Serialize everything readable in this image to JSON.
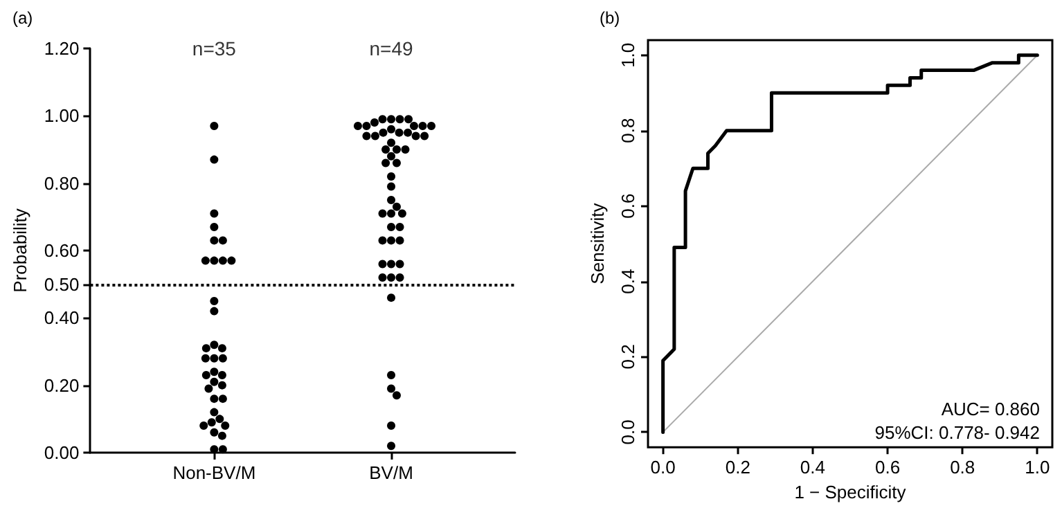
{
  "chart_data": [
    {
      "type": "scatter",
      "title": "(a)",
      "ylabel": "Probability",
      "categories": [
        "Non-BV/M",
        "BV/M"
      ],
      "marker": "circle",
      "series": [
        {
          "color": "#000000",
          "x": [
            "Non-BV/M",
            "Non-BV/M",
            "Non-BV/M",
            "Non-BV/M",
            "Non-BV/M",
            "Non-BV/M",
            "Non-BV/M",
            "Non-BV/M",
            "Non-BV/M",
            "Non-BV/M",
            "Non-BV/M",
            "Non-BV/M",
            "Non-BV/M",
            "Non-BV/M",
            "Non-BV/M",
            "Non-BV/M",
            "Non-BV/M",
            "Non-BV/M",
            "Non-BV/M",
            "Non-BV/M",
            "Non-BV/M",
            "Non-BV/M",
            "Non-BV/M",
            "Non-BV/M",
            "Non-BV/M",
            "Non-BV/M",
            "Non-BV/M",
            "Non-BV/M",
            "Non-BV/M",
            "Non-BV/M",
            "Non-BV/M",
            "Non-BV/M",
            "Non-BV/M",
            "Non-BV/M",
            "Non-BV/M"
          ],
          "values": [
            0.97,
            0.87,
            0.71,
            0.67,
            0.63,
            0.63,
            0.57,
            0.57,
            0.57,
            0.57,
            0.45,
            0.42,
            0.32,
            0.31,
            0.31,
            0.28,
            0.28,
            0.28,
            0.23,
            0.24,
            0.23,
            0.2,
            0.19,
            0.21,
            0.16,
            0.16,
            0.12,
            0.1,
            0.09,
            0.08,
            0.08,
            0.06,
            0.05,
            0.01,
            0.01
          ]
        },
        {
          "color": "#000000",
          "x": [
            "BV/M",
            "BV/M",
            "BV/M",
            "BV/M",
            "BV/M",
            "BV/M",
            "BV/M",
            "BV/M",
            "BV/M",
            "BV/M",
            "BV/M",
            "BV/M",
            "BV/M",
            "BV/M",
            "BV/M",
            "BV/M",
            "BV/M",
            "BV/M",
            "BV/M",
            "BV/M",
            "BV/M",
            "BV/M",
            "BV/M",
            "BV/M",
            "BV/M",
            "BV/M",
            "BV/M",
            "BV/M",
            "BV/M",
            "BV/M",
            "BV/M",
            "BV/M",
            "BV/M",
            "BV/M",
            "BV/M",
            "BV/M",
            "BV/M",
            "BV/M",
            "BV/M",
            "BV/M",
            "BV/M",
            "BV/M",
            "BV/M",
            "BV/M",
            "BV/M",
            "BV/M",
            "BV/M",
            "BV/M",
            "BV/M"
          ],
          "values": [
            0.96,
            0.95,
            0.97,
            0.98,
            0.97,
            0.99,
            0.99,
            0.99,
            0.99,
            0.95,
            0.97,
            0.94,
            0.94,
            0.94,
            0.95,
            0.97,
            0.94,
            0.97,
            0.9,
            0.9,
            0.9,
            0.92,
            0.88,
            0.86,
            0.86,
            0.82,
            0.79,
            0.75,
            0.73,
            0.71,
            0.71,
            0.71,
            0.67,
            0.67,
            0.63,
            0.63,
            0.63,
            0.56,
            0.56,
            0.56,
            0.52,
            0.52,
            0.52,
            0.46,
            0.23,
            0.19,
            0.17,
            0.08,
            0.02
          ]
        }
      ],
      "ylim": [
        0,
        1.2
      ],
      "yticks": [
        {
          "value": 0,
          "label": "0.00"
        },
        {
          "value": 0.2,
          "label": "0.20"
        },
        {
          "value": 0.4,
          "label": "0.40"
        },
        {
          "value": 0.5,
          "label": "0.50"
        },
        {
          "value": 0.6,
          "label": "0.60"
        },
        {
          "value": 0.8,
          "label": "0.80"
        },
        {
          "value": 1,
          "label": "1.00"
        },
        {
          "value": 1.2,
          "label": "1.20"
        }
      ],
      "ref_lines": [
        {
          "axis": "y",
          "value": 0.5,
          "color": "#000000",
          "line_style": "dotted"
        }
      ],
      "annotations": [
        "n=35",
        "n=49"
      ]
    },
    {
      "type": "line",
      "title": "(b)",
      "xlabel": "1 − Specificity",
      "ylabel": "Sensitivity",
      "series": [
        {
          "color": "#000000",
          "x": [
            0,
            0,
            0.03,
            0.03,
            0.06,
            0.06,
            0.08,
            0.12,
            0.12,
            0.14,
            0.17,
            0.29,
            0.29,
            0.6,
            0.6,
            0.66,
            0.66,
            0.69,
            0.69,
            0.83,
            0.88,
            0.95,
            0.95,
            1
          ],
          "values": [
            0,
            0.19,
            0.22,
            0.49,
            0.49,
            0.64,
            0.7,
            0.7,
            0.74,
            0.76,
            0.8,
            0.8,
            0.9,
            0.9,
            0.92,
            0.92,
            0.94,
            0.94,
            0.96,
            0.96,
            0.98,
            0.98,
            1,
            1
          ]
        },
        {
          "color": "#aaaaaa",
          "x": [
            0,
            1
          ],
          "values": [
            0,
            1
          ]
        }
      ],
      "xlim": [
        -0.04,
        1.04
      ],
      "ylim": [
        -0.04,
        1.04
      ],
      "xticks": [
        {
          "value": 0,
          "label": "0.0"
        },
        {
          "value": 0.2,
          "label": "0.2"
        },
        {
          "value": 0.4,
          "label": "0.4"
        },
        {
          "value": 0.6,
          "label": "0.6"
        },
        {
          "value": 0.8,
          "label": "0.8"
        },
        {
          "value": 1,
          "label": "1.0"
        }
      ],
      "yticks": [
        {
          "value": 0,
          "label": "0.0"
        },
        {
          "value": 0.2,
          "label": "0.2"
        },
        {
          "value": 0.4,
          "label": "0.4"
        },
        {
          "value": 0.6,
          "label": "0.6"
        },
        {
          "value": 0.8,
          "label": "0.8"
        },
        {
          "value": 1,
          "label": "1.0"
        }
      ],
      "annotations": [
        "AUC= 0.860",
        "95%CI: 0.778- 0.942"
      ]
    }
  ]
}
